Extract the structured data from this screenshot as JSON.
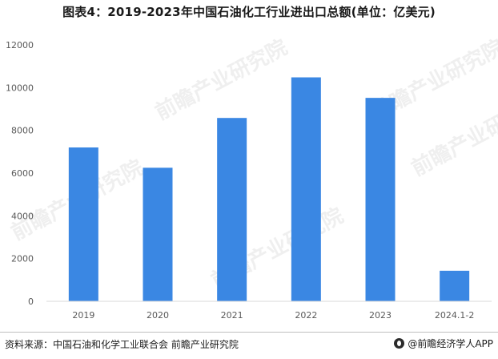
{
  "title": "图表4：2019-2023年中国石油化工行业进出口总额(单位：亿美元)",
  "source": "资料来源：中国石油和化学工业联合会 前瞻产业研究院",
  "brand": "@前瞻经济学人APP",
  "watermark": "前瞻产业研究院",
  "colors": {
    "bar": "#3a87e3",
    "axis": "#d9d9d9",
    "tick_text": "#595959"
  },
  "chart_data": {
    "type": "bar",
    "categories": [
      "2019",
      "2020",
      "2021",
      "2022",
      "2023",
      "2024.1-2"
    ],
    "values": [
      7200,
      6250,
      8580,
      10480,
      9520,
      1430
    ],
    "title": "图表4：2019-2023年中国石油化工行业进出口总额(单位：亿美元)",
    "xlabel": "",
    "ylabel": "",
    "ylim": [
      0,
      12000
    ],
    "yticks": [
      "0",
      "2000",
      "4000",
      "6000",
      "8000",
      "10000",
      "12000"
    ],
    "grid": false,
    "legend": "none"
  }
}
